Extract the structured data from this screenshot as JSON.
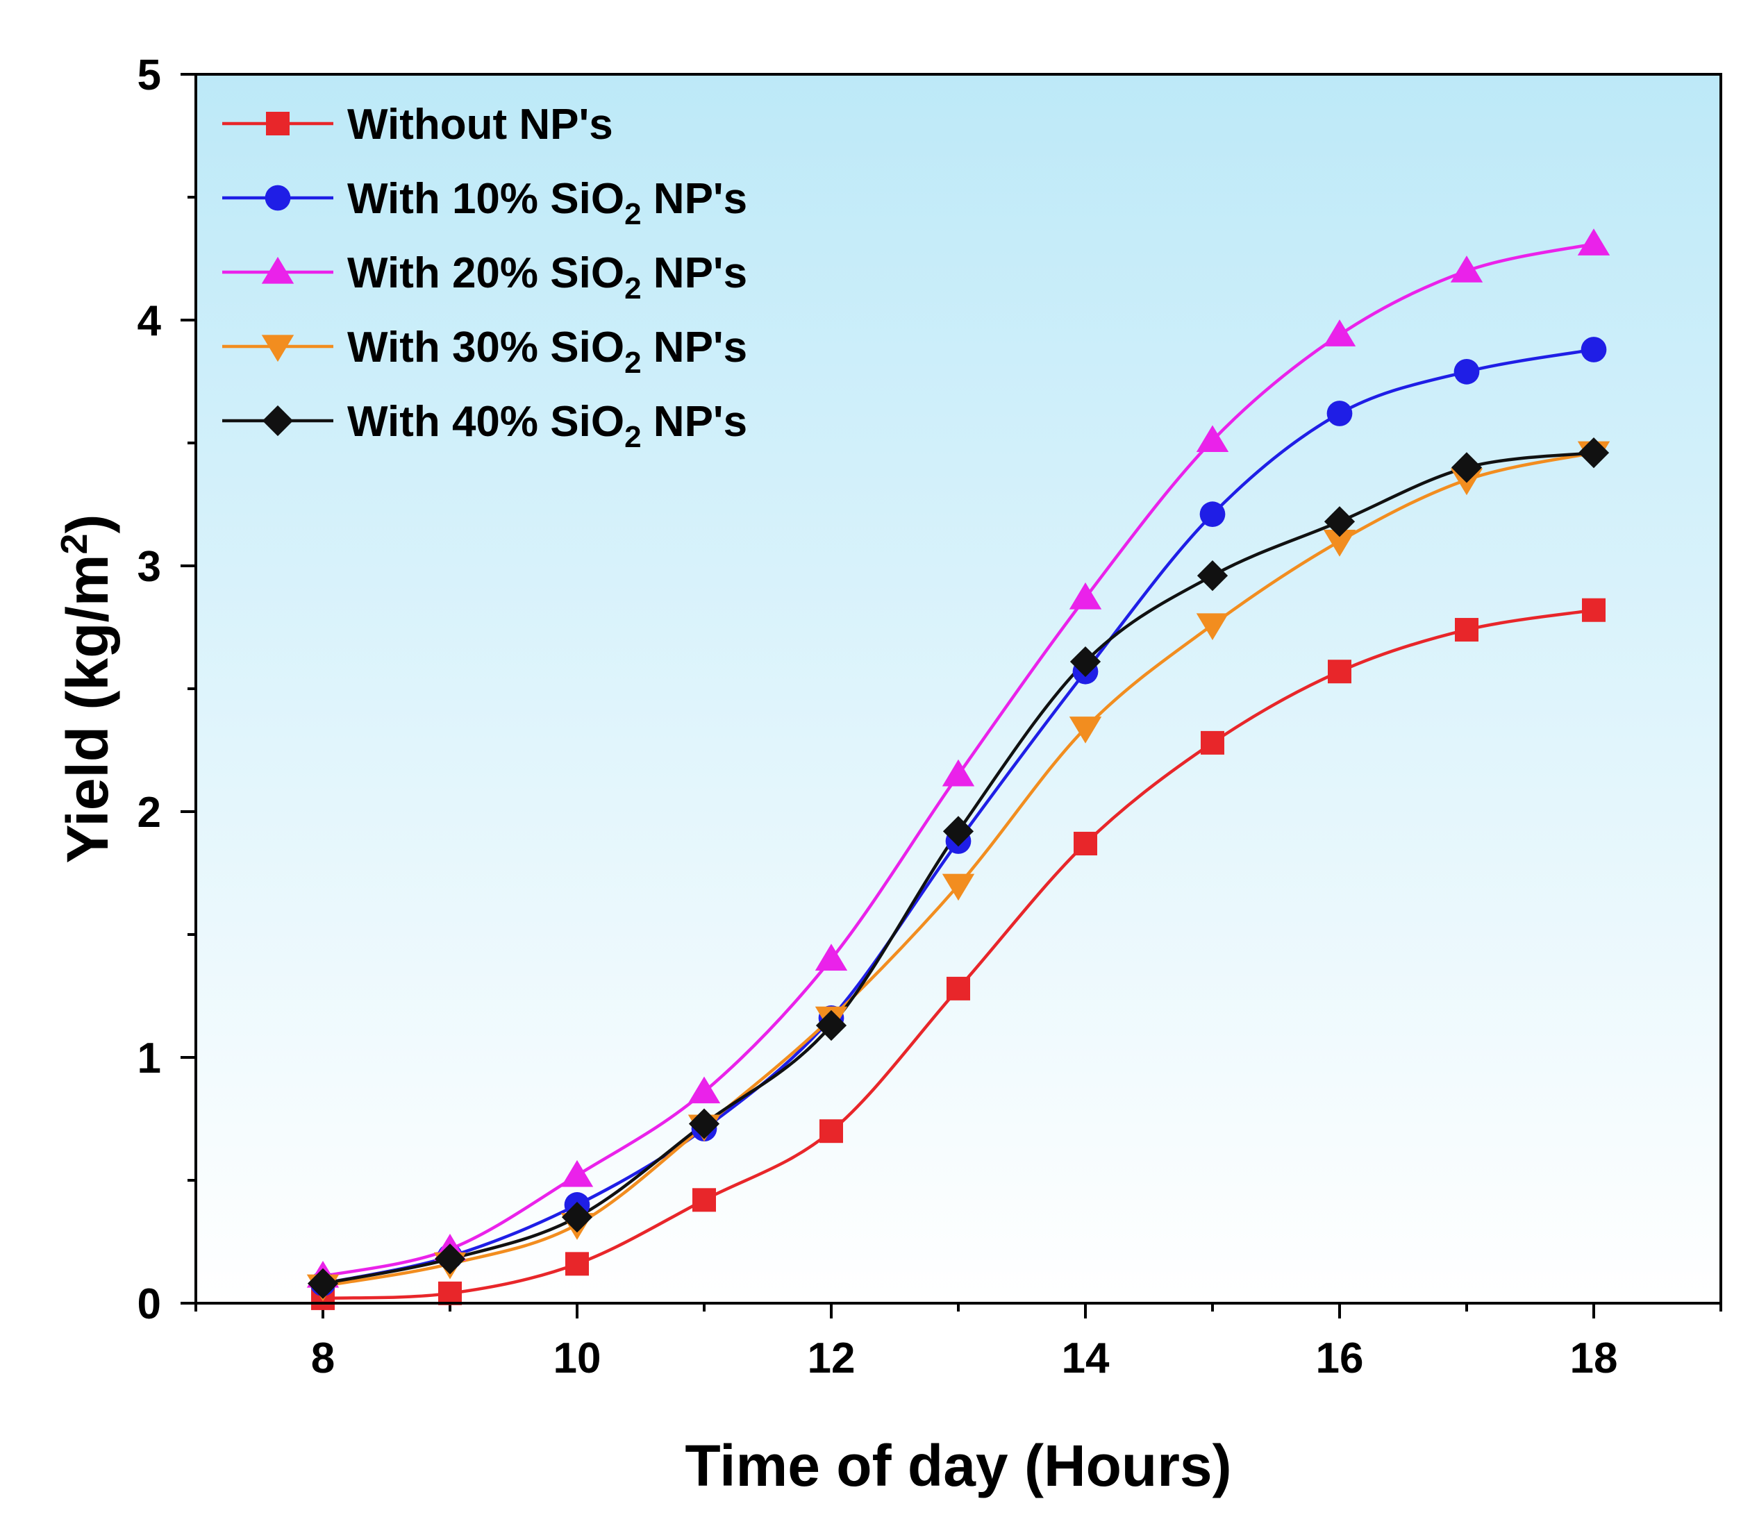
{
  "chart_data": {
    "type": "line",
    "title": "",
    "xlabel": "Time of day (Hours)",
    "ylabel_main": "Yield (kg/m",
    "ylabel_sup": "2",
    "ylabel_end": ")",
    "xlim": [
      7,
      19
    ],
    "ylim": [
      0,
      5
    ],
    "xticks": [
      8,
      10,
      12,
      14,
      16,
      18
    ],
    "yticks": [
      0,
      1,
      2,
      3,
      4,
      5
    ],
    "x": [
      8,
      9,
      10,
      11,
      12,
      13,
      14,
      15,
      16,
      17,
      18
    ],
    "legend_position": "top-left",
    "background_gradient": [
      "#bde9f8",
      "#ffffff"
    ],
    "series": [
      {
        "name": "Without NP's",
        "label_main": "Without NP's",
        "color": "#e8262a",
        "marker": "square",
        "values": [
          0.02,
          0.04,
          0.16,
          0.42,
          0.7,
          1.28,
          1.87,
          2.28,
          2.57,
          2.74,
          2.82
        ]
      },
      {
        "name": "With 10% SiO2 NP's",
        "label_main": "With 10% SiO",
        "label_sub": "2",
        "label_end": " NP's",
        "color": "#1f1ee6",
        "marker": "circle",
        "values": [
          0.08,
          0.19,
          0.4,
          0.71,
          1.16,
          1.88,
          2.57,
          3.21,
          3.62,
          3.79,
          3.88
        ]
      },
      {
        "name": "With 20% SiO2 NP's",
        "label_main": "With 20% SiO",
        "label_sub": "2",
        "label_end": " NP's",
        "color": "#ea22ea",
        "marker": "triangle-up",
        "values": [
          0.11,
          0.22,
          0.52,
          0.86,
          1.4,
          2.15,
          2.87,
          3.51,
          3.94,
          4.2,
          4.31
        ]
      },
      {
        "name": "With 30% SiO2 NP's",
        "label_main": "With 30% SiO",
        "label_sub": "2",
        "label_end": " NP's",
        "color": "#f28d1f",
        "marker": "triangle-down",
        "values": [
          0.07,
          0.16,
          0.32,
          0.72,
          1.16,
          1.7,
          2.34,
          2.76,
          3.1,
          3.35,
          3.46
        ]
      },
      {
        "name": "With 40% SiO2 NP's",
        "label_main": "With 40% SiO",
        "label_sub": "2",
        "label_end": " NP's",
        "color": "#111111",
        "marker": "diamond",
        "values": [
          0.08,
          0.18,
          0.35,
          0.73,
          1.13,
          1.92,
          2.61,
          2.96,
          3.18,
          3.4,
          3.46
        ]
      }
    ]
  }
}
